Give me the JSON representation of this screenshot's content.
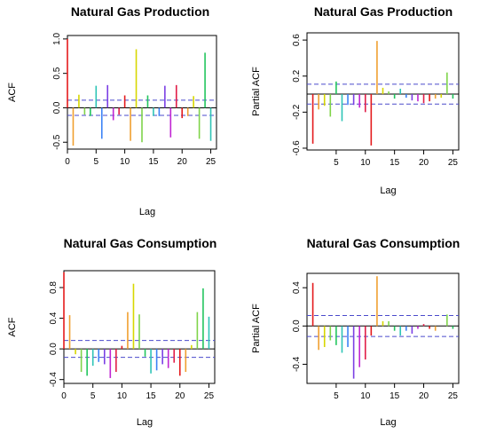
{
  "chart_data": [
    {
      "type": "bar",
      "title": "Natural Gas Production",
      "xlabel": "Lag",
      "ylabel": "ACF",
      "xlim": [
        0,
        26
      ],
      "ylim": [
        -0.6,
        1.05
      ],
      "yticks": [
        -0.5,
        0.0,
        0.5,
        1.0
      ],
      "ytick_labels": [
        "-0.5",
        "0.0",
        "0.5",
        "1.0"
      ],
      "xticks": [
        0,
        5,
        10,
        15,
        20,
        25
      ],
      "ci": 0.11,
      "x": [
        0,
        1,
        2,
        3,
        4,
        5,
        6,
        7,
        8,
        9,
        10,
        11,
        12,
        13,
        14,
        15,
        16,
        17,
        18,
        19,
        20,
        21,
        22,
        23,
        24,
        25
      ],
      "values": [
        1.0,
        -0.55,
        0.19,
        -0.1,
        -0.12,
        0.32,
        -0.45,
        0.33,
        -0.18,
        -0.1,
        0.18,
        -0.48,
        0.85,
        -0.5,
        0.18,
        -0.12,
        -0.12,
        0.32,
        -0.43,
        0.33,
        -0.15,
        -0.12,
        0.17,
        -0.45,
        0.8,
        -0.48
      ]
    },
    {
      "type": "bar",
      "title": "Natural Gas Production",
      "xlabel": "Lag",
      "ylabel": "Partial ACF",
      "xlim": [
        0,
        26
      ],
      "ylim": [
        -0.62,
        0.68
      ],
      "yticks": [
        -0.6,
        -0.2,
        0.2,
        0.6
      ],
      "ytick_labels": [
        "-0.6",
        "-0.2",
        "0.2",
        "0.6"
      ],
      "xticks": [
        5,
        10,
        15,
        20,
        25
      ],
      "ci": 0.11,
      "x": [
        1,
        2,
        3,
        4,
        5,
        6,
        7,
        8,
        9,
        10,
        11,
        12,
        13,
        14,
        15,
        16,
        17,
        18,
        19,
        20,
        21,
        22,
        23,
        24,
        25
      ],
      "values": [
        -0.55,
        -0.17,
        -0.13,
        -0.25,
        0.14,
        -0.3,
        -0.12,
        -0.12,
        -0.15,
        -0.2,
        -0.57,
        0.59,
        0.07,
        0.03,
        -0.05,
        0.06,
        -0.04,
        -0.07,
        -0.08,
        -0.1,
        -0.08,
        -0.05,
        -0.04,
        0.24,
        -0.05
      ]
    },
    {
      "type": "bar",
      "title": "Natural Gas Consumption",
      "xlabel": "Lag",
      "ylabel": "ACF",
      "xlim": [
        0,
        26
      ],
      "ylim": [
        -0.45,
        1.02
      ],
      "yticks": [
        -0.4,
        0.0,
        0.4,
        0.8
      ],
      "ytick_labels": [
        "-0.4",
        "0.0",
        "0.4",
        "0.8"
      ],
      "xticks": [
        0,
        5,
        10,
        15,
        20,
        25
      ],
      "ci": 0.11,
      "x": [
        0,
        1,
        2,
        3,
        4,
        5,
        6,
        7,
        8,
        9,
        10,
        11,
        12,
        13,
        14,
        15,
        16,
        17,
        18,
        19,
        20,
        21,
        22,
        23,
        24,
        25
      ],
      "values": [
        1.0,
        0.44,
        -0.07,
        -0.3,
        -0.35,
        -0.22,
        -0.17,
        -0.2,
        -0.38,
        -0.3,
        0.04,
        0.48,
        0.85,
        0.45,
        -0.1,
        -0.32,
        -0.28,
        -0.2,
        -0.25,
        -0.18,
        -0.35,
        -0.3,
        0.05,
        0.48,
        0.79,
        0.42
      ]
    },
    {
      "type": "bar",
      "title": "Natural Gas Consumption",
      "xlabel": "Lag",
      "ylabel": "Partial ACF",
      "xlim": [
        0,
        26
      ],
      "ylim": [
        -0.6,
        0.55
      ],
      "yticks": [
        -0.4,
        0.0,
        0.4
      ],
      "ytick_labels": [
        "-0.4",
        "0.0",
        "0.4"
      ],
      "xticks": [
        5,
        10,
        15,
        20,
        25
      ],
      "ci": 0.11,
      "x": [
        1,
        2,
        3,
        4,
        5,
        6,
        7,
        8,
        9,
        10,
        11,
        12,
        13,
        14,
        15,
        16,
        17,
        18,
        19,
        20,
        21,
        22,
        23,
        24,
        25
      ],
      "values": [
        0.45,
        -0.25,
        -0.22,
        -0.15,
        -0.2,
        -0.28,
        -0.22,
        -0.55,
        -0.43,
        -0.35,
        -0.1,
        0.52,
        0.05,
        0.05,
        -0.05,
        -0.1,
        -0.05,
        -0.08,
        -0.03,
        0.02,
        -0.03,
        -0.05,
        0.0,
        0.12,
        -0.03
      ]
    }
  ],
  "colors": {
    "palette": [
      "#e41a1c",
      "#f0a030",
      "#d7d700",
      "#7fd44a",
      "#22c55e",
      "#2ec4b6",
      "#3b82f6",
      "#7b3fe4",
      "#c026d3",
      "#e11d48"
    ],
    "ci_line": "#4b4bcc",
    "zero_line": "#000000"
  }
}
